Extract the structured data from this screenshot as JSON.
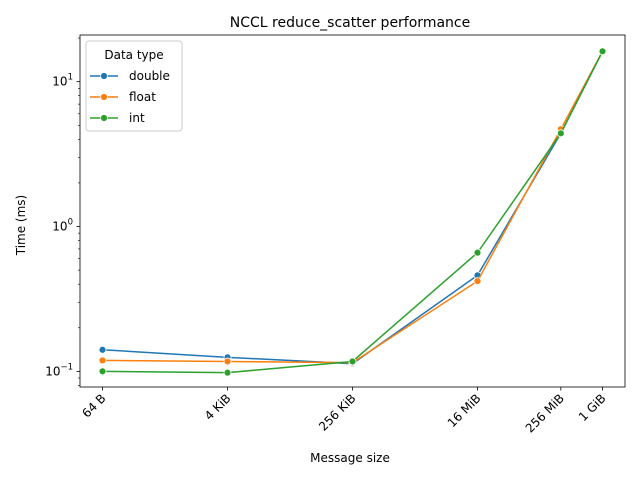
{
  "chart_data": {
    "type": "line",
    "title": "NCCL reduce_scatter performance",
    "xlabel": "Message size",
    "ylabel": "Time (ms)",
    "x_scale": "log2",
    "y_scale": "log10",
    "categories": [
      "64 B",
      "4 KiB",
      "256 KiB",
      "16 MiB",
      "256 MiB",
      "1 GiB"
    ],
    "x_bytes": [
      64,
      4096,
      262144,
      16777216,
      268435456,
      1073741824
    ],
    "ylim": [
      0.078,
      21
    ],
    "y_ticks": [
      {
        "value": 0.1,
        "base": "10",
        "exp": "−1"
      },
      {
        "value": 1,
        "base": "10",
        "exp": "0"
      },
      {
        "value": 10,
        "base": "10",
        "exp": "1"
      }
    ],
    "grid": false,
    "legend": {
      "title": "Data type",
      "placement": "top-left"
    },
    "series": [
      {
        "name": "double",
        "color": "#1f77b4",
        "values": [
          0.141,
          0.125,
          0.113,
          0.46,
          4.4,
          16.2
        ]
      },
      {
        "name": "float",
        "color": "#ff7f0e",
        "values": [
          0.119,
          0.117,
          0.115,
          0.42,
          4.7,
          16.2
        ]
      },
      {
        "name": "int",
        "color": "#2ca02c",
        "values": [
          0.1,
          0.098,
          0.117,
          0.66,
          4.4,
          16.2
        ]
      }
    ]
  }
}
